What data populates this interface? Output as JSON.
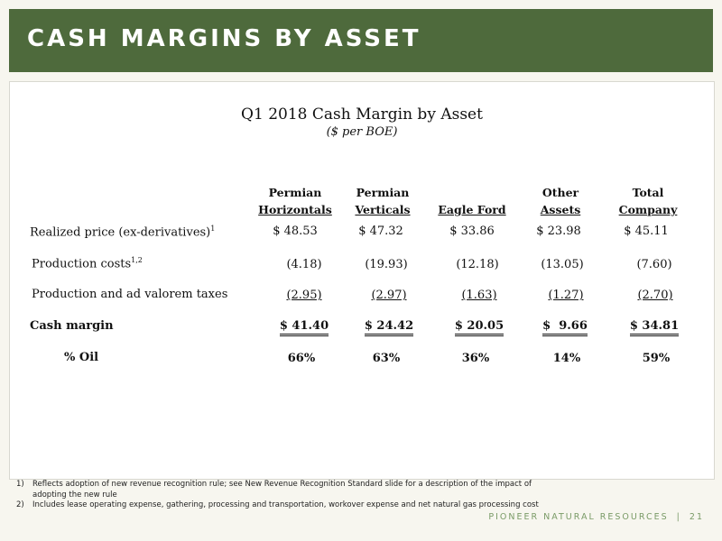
{
  "header": {
    "title": "CASH MARGINS BY ASSET"
  },
  "table": {
    "title": "Q1 2018 Cash Margin by Asset",
    "subtitle": "($ per BOE)",
    "columns": [
      {
        "line1": "Permian",
        "line2": "Horizontals"
      },
      {
        "line1": "Permian",
        "line2": "Verticals"
      },
      {
        "line1": "",
        "line2": "Eagle Ford"
      },
      {
        "line1": "Other",
        "line2": "Assets"
      },
      {
        "line1": "Total",
        "line2": "Company"
      }
    ],
    "rows": [
      {
        "label": "Realized price (ex-derivatives)",
        "note": "1",
        "values": [
          "$ 48.53",
          "$ 47.32",
          "$ 33.86",
          "$ 23.98",
          "$ 45.11"
        ]
      },
      {
        "label": "Production costs",
        "note": "1,2",
        "values": [
          "(4.18)",
          "(19.93)",
          "(12.18)",
          "(13.05)",
          "(7.60)"
        ]
      },
      {
        "label": "Production and ad valorem taxes",
        "note": "",
        "values": [
          "(2.95)",
          "(2.97)",
          "(1.63)",
          "(1.27)",
          "(2.70)"
        ]
      },
      {
        "label": "Cash margin",
        "note": "",
        "values": [
          "$ 41.40",
          "$ 24.42",
          "$ 20.05",
          "$  9.66",
          "$ 34.81"
        ]
      },
      {
        "label": "% Oil",
        "note": "",
        "values": [
          "66%",
          "63%",
          "36%",
          "14%",
          "59%"
        ]
      }
    ]
  },
  "footnotes": [
    {
      "num": "1)",
      "text": "Reflects adoption of new revenue recognition rule; see New Revenue Recognition Standard slide for a description of the impact of adopting the new rule"
    },
    {
      "num": "2)",
      "text": "Includes lease operating expense, gathering, processing and transportation, workover expense and net natural gas processing cost"
    }
  ],
  "footer": {
    "brand": "PIONEER NATURAL RESOURCES",
    "separator": "|",
    "page": "21"
  }
}
